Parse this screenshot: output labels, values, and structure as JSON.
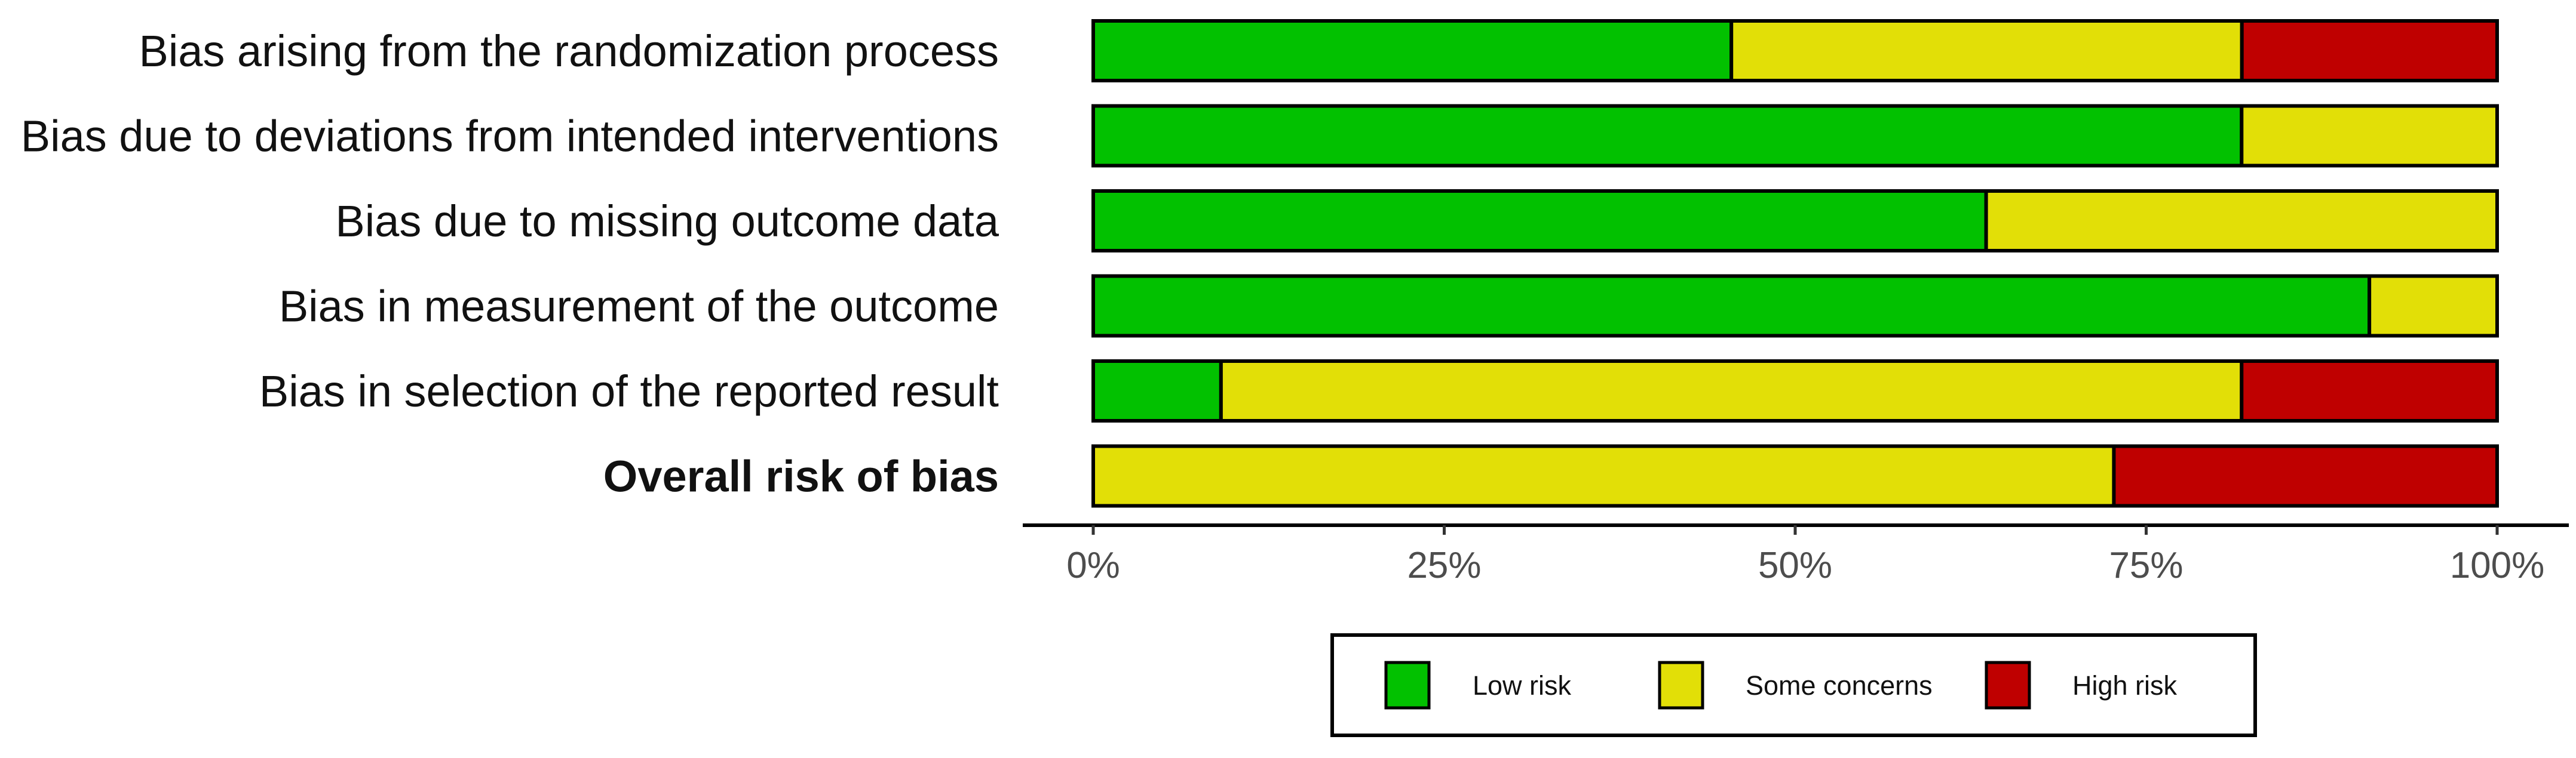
{
  "chart_data": {
    "type": "bar",
    "orientation": "horizontal",
    "stacked": true,
    "value_unit": "percent",
    "categories": [
      "Bias arising from the randomization process",
      "Bias due to deviations from intended interventions",
      "Bias due to missing outcome data",
      "Bias in measurement of the outcome",
      "Bias in selection of the reported result",
      "Overall risk of bias"
    ],
    "bold_categories": [
      "Overall risk of bias"
    ],
    "series": [
      {
        "name": "Low risk",
        "color": "#02C100",
        "values": [
          45.5,
          81.8,
          63.6,
          90.9,
          9.1,
          0
        ]
      },
      {
        "name": "Some concerns",
        "color": "#E2DF07",
        "values": [
          36.4,
          18.2,
          36.4,
          9.1,
          72.7,
          72.7
        ]
      },
      {
        "name": "High risk",
        "color": "#BF0000",
        "values": [
          18.2,
          0,
          0,
          0,
          18.2,
          27.3
        ]
      }
    ],
    "x_ticks": [
      "0%",
      "25%",
      "50%",
      "75%",
      "100%"
    ],
    "xlim": [
      0,
      100
    ],
    "title": "",
    "xlabel": "",
    "ylabel": "",
    "grid": false,
    "legend_position": "bottom"
  }
}
